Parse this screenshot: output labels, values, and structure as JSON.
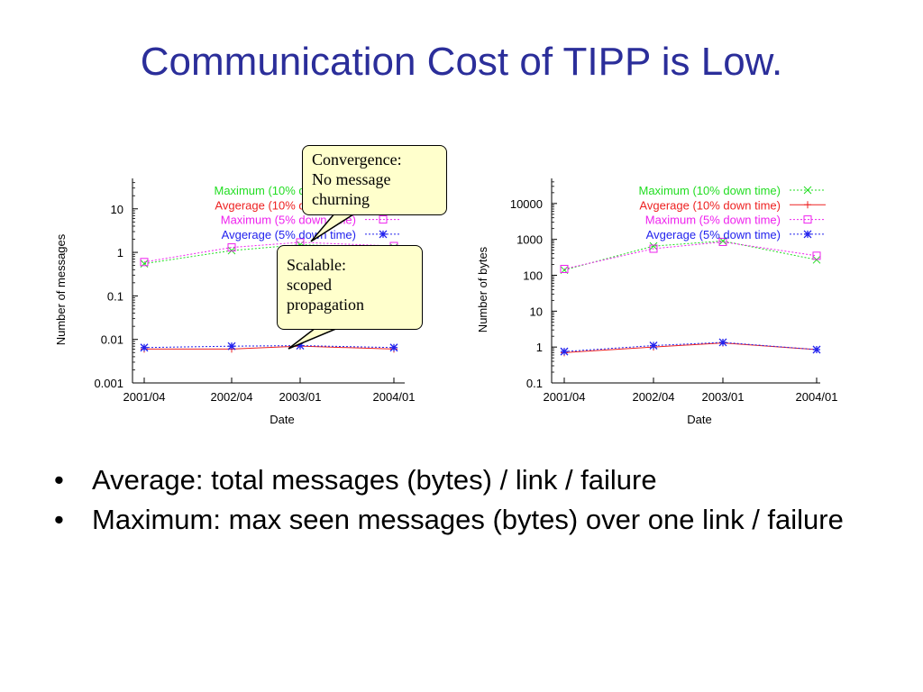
{
  "slide": {
    "title": "Communication Cost of TIPP is Low.",
    "bullets": [
      "Average: total messages (bytes) / link / failure",
      "Maximum: max seen messages (bytes) over one link / failure"
    ],
    "callouts": [
      {
        "lines": [
          "Convergence:",
          "No message",
          "churning"
        ]
      },
      {
        "lines": [
          "Scalable:",
          "scoped",
          "propagation"
        ]
      }
    ]
  },
  "colors": {
    "max10": "#22dd22",
    "avg10": "#ee2222",
    "max5": "#ee22ee",
    "avg5": "#2222ee",
    "title": "#2b2e9a",
    "callout_bg": "#ffffcc"
  },
  "chart_data": [
    {
      "type": "line",
      "xlabel": "Date",
      "ylabel": "Number of messages",
      "scale": "log",
      "x_ticks": [
        "2001/04",
        "2002/04",
        "2003/01",
        "2004/01"
      ],
      "y_ticks": [
        "0.001",
        "0.01",
        "0.1",
        "1",
        "10"
      ],
      "ylim": [
        0.001,
        50
      ],
      "legend_position": "top-right",
      "series": [
        {
          "name": "Maximum (10% down time)",
          "marker": "x",
          "values": [
            0.55,
            1.1,
            1.5,
            1.3
          ]
        },
        {
          "name": "Avgerage (10% down time)",
          "marker": "+",
          "values": [
            0.006,
            0.006,
            0.007,
            0.006
          ]
        },
        {
          "name": "Maximum (5% down time)",
          "marker": "square",
          "values": [
            0.6,
            1.3,
            1.7,
            1.4
          ]
        },
        {
          "name": "Avgerage (5% down time)",
          "marker": "star",
          "values": [
            0.0065,
            0.007,
            0.0072,
            0.0065
          ]
        }
      ]
    },
    {
      "type": "line",
      "xlabel": "Date",
      "ylabel": "Number of bytes",
      "scale": "log",
      "x_ticks": [
        "2001/04",
        "2002/04",
        "2003/01",
        "2004/01"
      ],
      "y_ticks": [
        "0.1",
        "1",
        "10",
        "100",
        "1000",
        "10000"
      ],
      "ylim": [
        0.1,
        50000
      ],
      "legend_position": "top-right",
      "series": [
        {
          "name": "Maximum (10% down time)",
          "marker": "x",
          "values": [
            140,
            650,
            900,
            270
          ]
        },
        {
          "name": "Avgerage (10% down time)",
          "marker": "+",
          "values": [
            0.7,
            1.0,
            1.3,
            0.85
          ]
        },
        {
          "name": "Maximum (5% down time)",
          "marker": "square",
          "values": [
            150,
            550,
            850,
            350
          ]
        },
        {
          "name": "Avgerage (5% down time)",
          "marker": "star",
          "values": [
            0.75,
            1.1,
            1.35,
            0.85
          ]
        }
      ]
    }
  ]
}
